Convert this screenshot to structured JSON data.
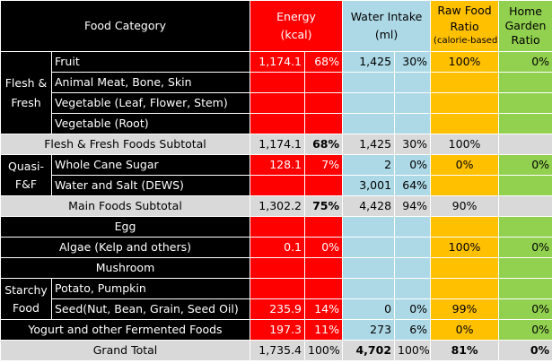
{
  "header": {
    "category": "Food Category",
    "energy_line1": "Energy",
    "energy_line2": "(kcal)",
    "water_line1": "Water Intake",
    "water_line2": "(ml)",
    "raw_line1": "Raw Food",
    "raw_line2": "Ratio",
    "raw_line3": "(calorie-based)",
    "garden_line1": "Home",
    "garden_line2": "Garden",
    "garden_line3": "Ratio"
  },
  "groups": {
    "flesh": "Flesh & Fresh",
    "quasi": "Quasi-F&F",
    "starchy": "Starchy Food"
  },
  "rows": {
    "fruit": {
      "label": "Fruit",
      "energy": "1,174.1",
      "energy_pct": "68%",
      "water": "1,425",
      "water_pct": "30%",
      "raw": "100%",
      "garden": "0%"
    },
    "meat": {
      "label": "Animal Meat, Bone, Skin"
    },
    "veg_leaf": {
      "label": "Vegetable (Leaf, Flower, Stem)"
    },
    "veg_root": {
      "label": "Vegetable (Root)"
    },
    "flesh_subtotal": {
      "label": "Flesh & Fresh Foods Subtotal",
      "energy": "1,174.1",
      "energy_pct": "68%",
      "water": "1,425",
      "water_pct": "30%",
      "raw": "100%"
    },
    "sugar": {
      "label": "Whole Cane Sugar",
      "energy": "128.1",
      "energy_pct": "7%",
      "water": "2",
      "water_pct": "0%",
      "raw": "0%",
      "garden": "0%"
    },
    "water_salt": {
      "label": "Water and Salt (DEWS)",
      "water": "3,001",
      "water_pct": "64%"
    },
    "main_subtotal": {
      "label": "Main Foods Subtotal",
      "energy": "1,302.2",
      "energy_pct": "75%",
      "water": "4,428",
      "water_pct": "94%",
      "raw": "90%"
    },
    "egg": {
      "label": "Egg"
    },
    "algae": {
      "label": "Algae (Kelp and others)",
      "energy": "0.1",
      "energy_pct": "0%",
      "raw": "100%",
      "garden": "0%"
    },
    "mushroom": {
      "label": "Mushroom"
    },
    "potato": {
      "label": "Potato, Pumpkin"
    },
    "seed": {
      "label": "Seed(Nut, Bean, Grain, Seed Oil)",
      "energy": "235.9",
      "energy_pct": "14%",
      "water": "0",
      "water_pct": "0%",
      "raw": "99%",
      "garden": "0%"
    },
    "yogurt": {
      "label": "Yogurt and other Fermented Foods",
      "energy": "197.3",
      "energy_pct": "11%",
      "water": "273",
      "water_pct": "6%",
      "raw": "0%",
      "garden": "0%"
    },
    "grand_total": {
      "label": "Grand Total",
      "energy": "1,735.4",
      "energy_pct": "100%",
      "water": "4,702",
      "water_pct": "100%",
      "raw": "81%",
      "garden": "0%"
    }
  },
  "colors": {
    "energy": "#ff0000",
    "water": "#add8e6",
    "raw": "#ffc000",
    "garden": "#92d050",
    "category": "#000000",
    "subtotal": "#d9d9d9"
  }
}
